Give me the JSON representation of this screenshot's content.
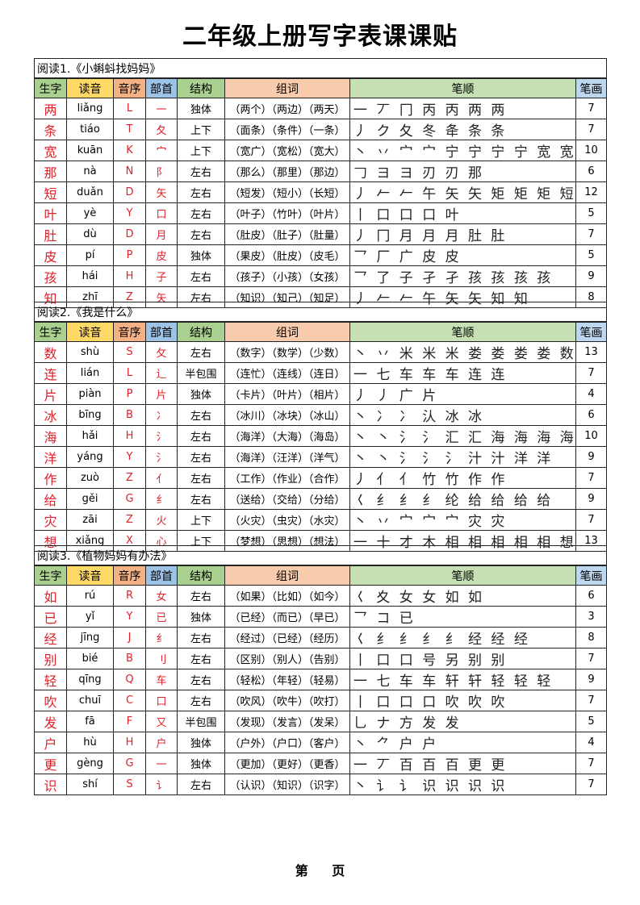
{
  "title": "二年级上册写字表课课贴",
  "headers": [
    "生字",
    "读音",
    "音序",
    "部首",
    "结构",
    "组词",
    "笔顺",
    "笔画"
  ],
  "header_colors": [
    "#a9d08e",
    "#ffd966",
    "#f4b183",
    "#9dc3e6",
    "#a9d08e",
    "#f8cbad",
    "#c6e0b4",
    "#bdd7ee"
  ],
  "accent_color": "#e0202a",
  "sections": [
    {
      "title": "阅读1.《小蝌蚪找妈妈》",
      "rows": [
        [
          "两",
          "liǎng",
          "L",
          "一",
          "独体",
          "（两个）（两边）（两天）",
          "一 丆 冂 丙 丙 两 两",
          "7"
        ],
        [
          "条",
          "tiáo",
          "T",
          "夂",
          "上下",
          "（面条）（条件）（一条）",
          "丿 ク 夂 冬 夅 条 条",
          "7"
        ],
        [
          "宽",
          "kuān",
          "K",
          "宀",
          "上下",
          "（宽广）（宽松）（宽大）",
          "丶 丷 宀 宀 宁 宁 宁 宁 宽 宽",
          "10"
        ],
        [
          "那",
          "nà",
          "N",
          "阝",
          "左右",
          "（那么）（那里）（那边）",
          "𠃌 ヨ ヨ 刃 刃 那",
          "6"
        ],
        [
          "短",
          "duǎn",
          "D",
          "矢",
          "左右",
          "（短发）（短小）（长短）",
          "丿 𠂉 𠂉 午 矢 矢 矩 矩 矩 短 短 短",
          "12"
        ],
        [
          "叶",
          "yè",
          "Y",
          "口",
          "左右",
          "（叶子）（竹叶）（叶片）",
          "丨 口 口 口 叶",
          "5"
        ],
        [
          "肚",
          "dù",
          "D",
          "月",
          "左右",
          "（肚皮）（肚子）（肚量）",
          "丿 冂 月 月 月 肚 肚",
          "7"
        ],
        [
          "皮",
          "pí",
          "P",
          "皮",
          "独体",
          "（果皮）（肚皮）（皮毛）",
          "乛 厂 广 皮 皮",
          "5"
        ],
        [
          "孩",
          "hái",
          "H",
          "子",
          "左右",
          "（孩子）（小孩）（女孩）",
          "乛 了 子 孑 孑 孩 孩 孩 孩",
          "9"
        ],
        [
          "知",
          "zhī",
          "Z",
          "矢",
          "左右",
          "（知识）（知己）（知足）",
          "丿 𠂉 𠂉 午 矢 矢 知 知",
          "8"
        ]
      ]
    },
    {
      "title": "阅读2.《我是什么》",
      "rows": [
        [
          "数",
          "shù",
          "S",
          "攵",
          "左右",
          "（数字）（数学）（少数）",
          "丶 丷 米 米 米 娄 娄 娄 娄 数 数 数 数",
          "13"
        ],
        [
          "连",
          "lián",
          "L",
          "辶",
          "半包围",
          "（连忙）（连线）（连日）",
          "一 七 车 车 车 连 连",
          "7"
        ],
        [
          "片",
          "piàn",
          "P",
          "片",
          "独体",
          "（卡片）（叶片）（相片）",
          "丿 丿 广 片",
          "4"
        ],
        [
          "冰",
          "bīng",
          "B",
          "冫",
          "左右",
          "（冰川）（冰块）（冰山）",
          "丶 冫 冫 汄 冰 冰",
          "6"
        ],
        [
          "海",
          "hǎi",
          "H",
          "氵",
          "左右",
          "（海洋）（大海）（海岛）",
          "丶 丶 氵 氵 汇 汇 海 海 海 海",
          "10"
        ],
        [
          "洋",
          "yáng",
          "Y",
          "氵",
          "左右",
          "（海洋）（汪洋）（洋气）",
          "丶 丶 氵 氵 氵 汁 汁 洋 洋",
          "9"
        ],
        [
          "作",
          "zuò",
          "Z",
          "亻",
          "左右",
          "（工作）（作业）（合作）",
          "丿 亻 亻 竹 竹 作 作",
          "7"
        ],
        [
          "给",
          "gěi",
          "G",
          "纟",
          "左右",
          "（送给）（交给）（分给）",
          "𡿨 纟 纟 纟 纶 给 给 给 给",
          "9"
        ],
        [
          "灾",
          "zāi",
          "Z",
          "火",
          "上下",
          "（火灾）（虫灾）（水灾）",
          "丶 丷 宀 宀 宀 灾 灾",
          "7"
        ],
        [
          "想",
          "xiǎng",
          "X",
          "心",
          "上下",
          "（梦想）（思想）（想法）",
          "一 十 才 木 相 相 相 相 相 想 想 想 想",
          "13"
        ]
      ]
    },
    {
      "title": "阅读3.《植物妈妈有办法》",
      "rows": [
        [
          "如",
          "rú",
          "R",
          "女",
          "左右",
          "（如果）（比如）（如今）",
          "𡿨 夊 女 女 如 如",
          "6"
        ],
        [
          "已",
          "yǐ",
          "Y",
          "已",
          "独体",
          "（已经）（而已）（早已）",
          "乛 コ 已",
          "3"
        ],
        [
          "经",
          "jīng",
          "J",
          "纟",
          "左右",
          "（经过）（已经）（经历）",
          "𡿨 纟 纟 纟 纟 经 经 经",
          "8"
        ],
        [
          "别",
          "bié",
          "B",
          "刂",
          "左右",
          "（区别）（别人）（告别）",
          "丨 口 口 号 另 别 别",
          "7"
        ],
        [
          "轻",
          "qīng",
          "Q",
          "车",
          "左右",
          "（轻松）（年轻）（轻易）",
          "一 七 车 车 轩 轩 轻 轻 轻",
          "9"
        ],
        [
          "吹",
          "chuī",
          "C",
          "口",
          "左右",
          "（吹风）（吹牛）（吹打）",
          "丨 口 口 口 吹 吹 吹",
          "7"
        ],
        [
          "发",
          "fā",
          "F",
          "又",
          "半包围",
          "（发现）（发言）（发呆）",
          "乚 ナ 方 发 发",
          "5"
        ],
        [
          "户",
          "hù",
          "H",
          "户",
          "独体",
          "（户外）（户口）（客户）",
          "丶 ⺈ 户 户",
          "4"
        ],
        [
          "更",
          "gèng",
          "G",
          "一",
          "独体",
          "（更加）（更好）（更香）",
          "一 丆 百 百 百 更 更",
          "7"
        ],
        [
          "识",
          "shí",
          "S",
          "讠",
          "左右",
          "（认识）（知识）（识字）",
          "丶 讠 讠 识 识 识 识",
          "7"
        ]
      ]
    }
  ],
  "footer": "第 页"
}
